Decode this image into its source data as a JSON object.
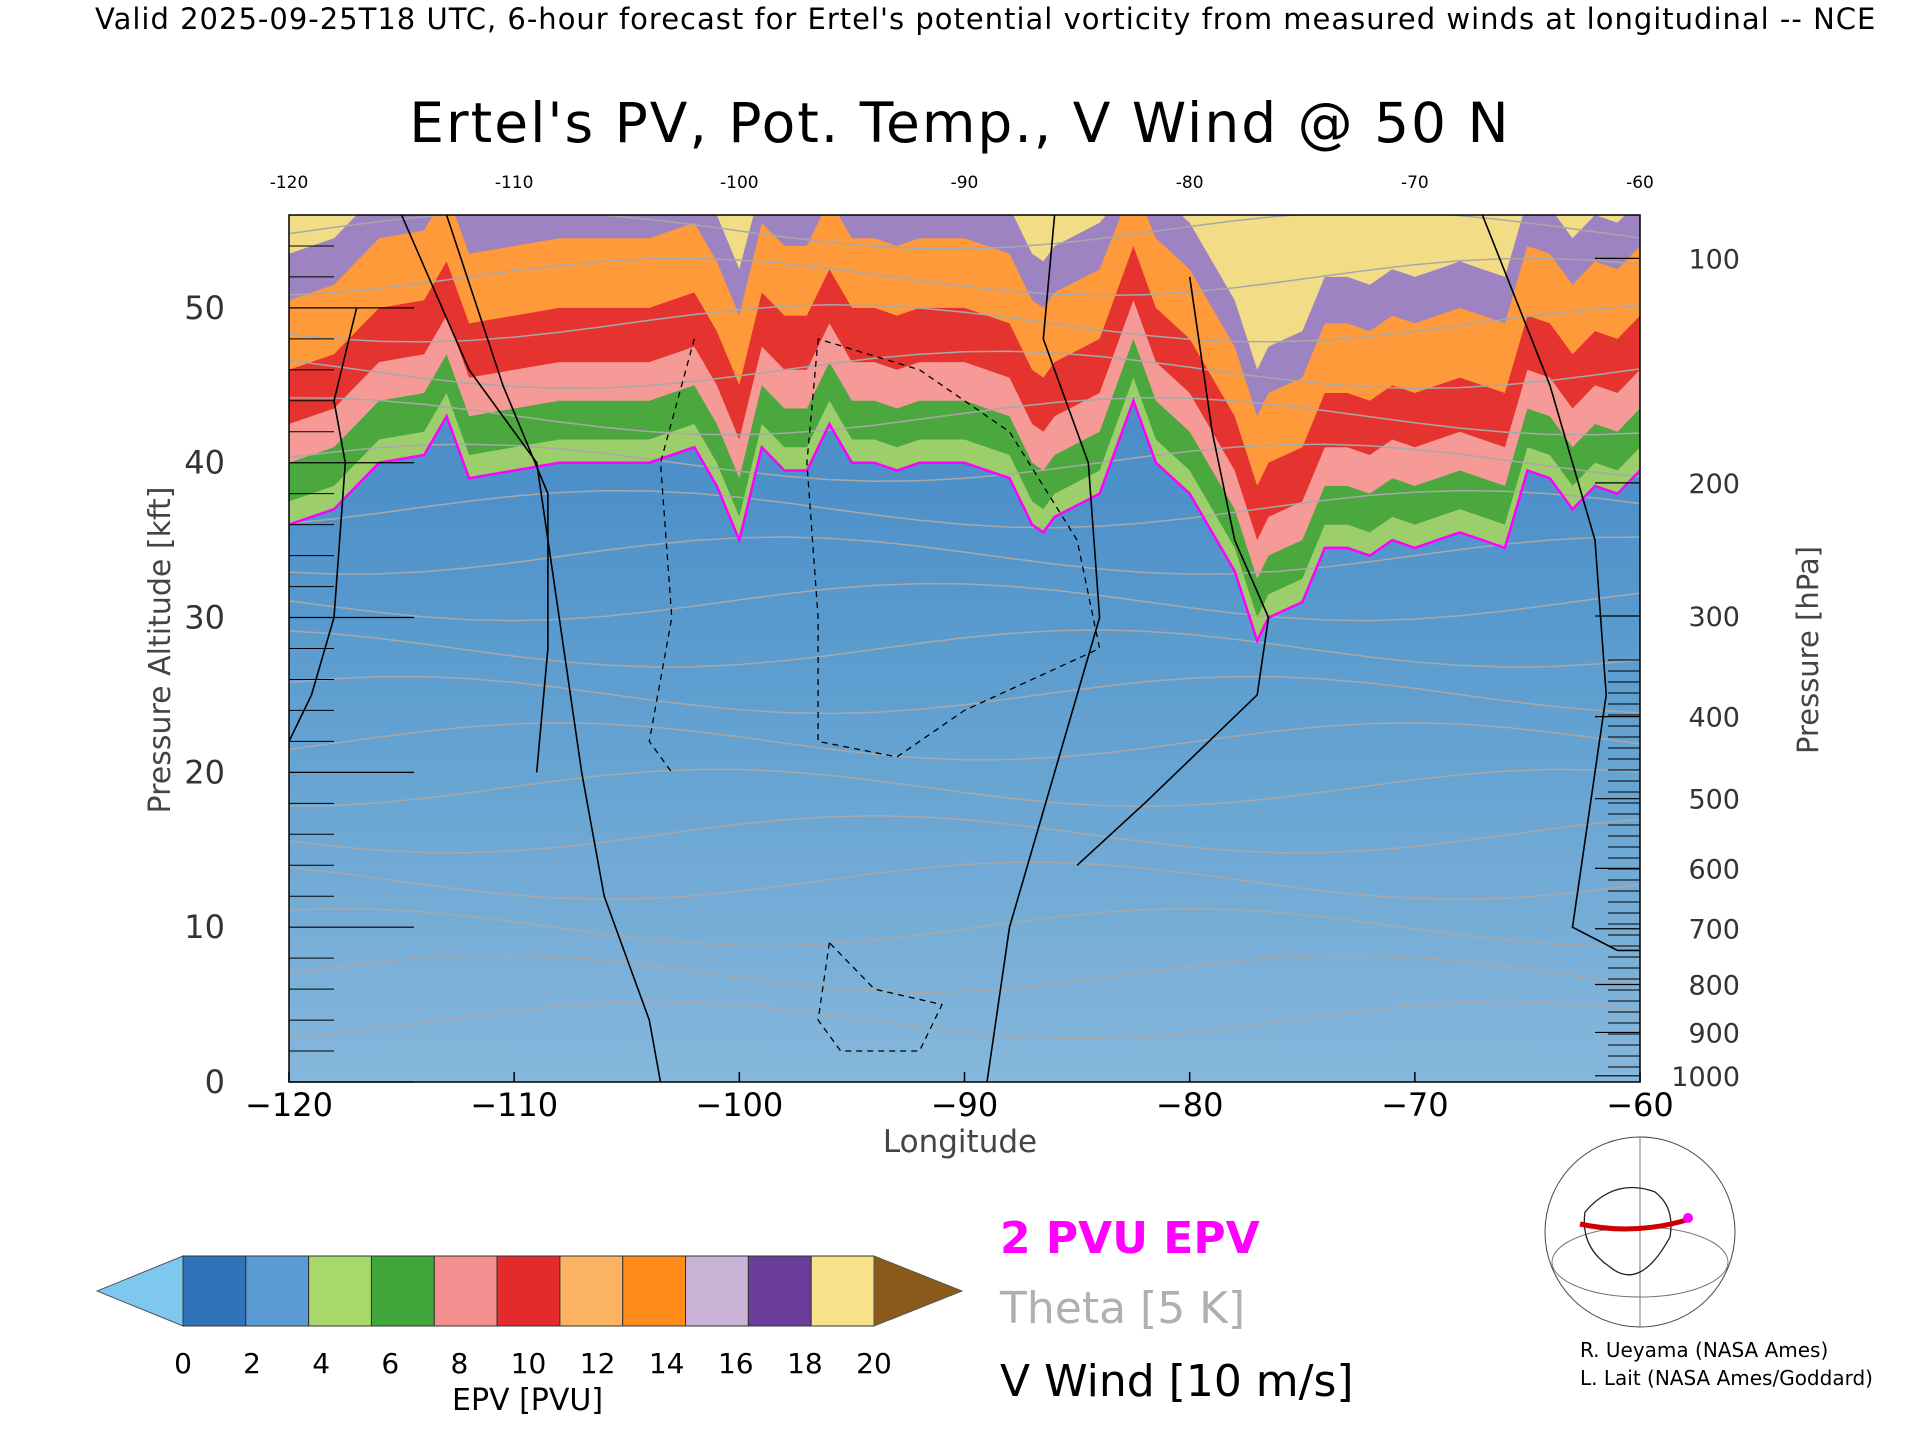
{
  "header": "Valid 2025-09-25T18 UTC, 6-hour forecast for Ertel's potential vorticity from measured winds at longitudinal -- NCE",
  "chart_data": {
    "type": "heatmap",
    "title": "Ertel's PV, Pot. Temp., V Wind @ 50 N",
    "xlabel": "Longitude",
    "ylabel": "Pressure Altitude [kft]",
    "y2label": "Pressure [hPa]",
    "xlim": [
      -120,
      -60
    ],
    "ylim": [
      0,
      56
    ],
    "x_ticks": [
      -120,
      -110,
      -100,
      -90,
      -80,
      -70,
      -60
    ],
    "x_tick_labels": [
      "−120",
      "−110",
      "−100",
      "−90",
      "−80",
      "−70",
      "−60"
    ],
    "x_top_tick_labels": [
      "-120",
      "-110",
      "-100",
      "-90",
      "-80",
      "-70",
      "-60"
    ],
    "y_ticks": [
      0,
      10,
      20,
      30,
      40,
      50
    ],
    "y_tick_labels": [
      "0",
      "10",
      "20",
      "30",
      "40",
      "50"
    ],
    "y2_ticks": [
      {
        "kft": 0.4,
        "label": "1000"
      },
      {
        "kft": 3.2,
        "label": "900"
      },
      {
        "kft": 6.3,
        "label": "800"
      },
      {
        "kft": 9.9,
        "label": "700"
      },
      {
        "kft": 13.8,
        "label": "600"
      },
      {
        "kft": 18.3,
        "label": "500"
      },
      {
        "kft": 23.6,
        "label": "400"
      },
      {
        "kft": 30.1,
        "label": "300"
      },
      {
        "kft": 38.7,
        "label": "200"
      },
      {
        "kft": 53.2,
        "label": "100"
      }
    ],
    "tropopause_2pvu_kft": {
      "x": [
        -120,
        -118,
        -116,
        -114,
        -113,
        -112,
        -110,
        -108,
        -106,
        -104,
        -102,
        -101,
        -100,
        -99,
        -98,
        -97,
        -96,
        -95,
        -94,
        -93,
        -92,
        -90,
        -88,
        -87,
        -86.5,
        -86,
        -84,
        -82.5,
        -81.5,
        -80,
        -78,
        -77,
        -76.5,
        -75,
        -74,
        -73,
        -72,
        -71,
        -70,
        -69,
        -68,
        -67,
        -66,
        -65,
        -64,
        -63,
        -62,
        -61,
        -60
      ],
      "y": [
        36,
        37,
        40,
        40.5,
        43,
        39,
        39.5,
        40,
        40,
        40,
        41,
        38.5,
        35,
        41,
        39.5,
        39.5,
        42.5,
        40,
        40,
        39.5,
        40,
        40,
        39,
        36,
        35.5,
        36.5,
        38,
        44,
        40,
        38,
        33,
        28.5,
        30,
        31,
        34.5,
        34.5,
        34,
        35,
        34.5,
        35,
        35.5,
        35,
        34.5,
        39.5,
        39,
        37,
        38.5,
        38,
        39.5
      ]
    },
    "colorbar": {
      "title": "EPV [PVU]",
      "ticks": [
        "0",
        "2",
        "4",
        "6",
        "8",
        "10",
        "12",
        "14",
        "16",
        "18",
        "20"
      ],
      "colors": [
        "#2f74b8",
        "#5b9bd5",
        "#a6d96a",
        "#41a63b",
        "#f48f8f",
        "#e32b2b",
        "#fdb462",
        "#ff8c1a",
        "#c9b3d6",
        "#6a3d9a",
        "#f7e28a"
      ],
      "under_color": "#7ec8f0",
      "over_color": "#8b5a1a"
    },
    "legend": [
      {
        "label": "2 PVU EPV",
        "color": "#ff00ff"
      },
      {
        "label": "Theta [5 K]",
        "color": "#b0b0b0"
      },
      {
        "label": "V Wind [10 m/s]",
        "color": "#000000"
      }
    ]
  },
  "credits": [
    "R. Ueyama (NASA Ames)",
    "L. Lait (NASA Ames/Goddard)"
  ]
}
